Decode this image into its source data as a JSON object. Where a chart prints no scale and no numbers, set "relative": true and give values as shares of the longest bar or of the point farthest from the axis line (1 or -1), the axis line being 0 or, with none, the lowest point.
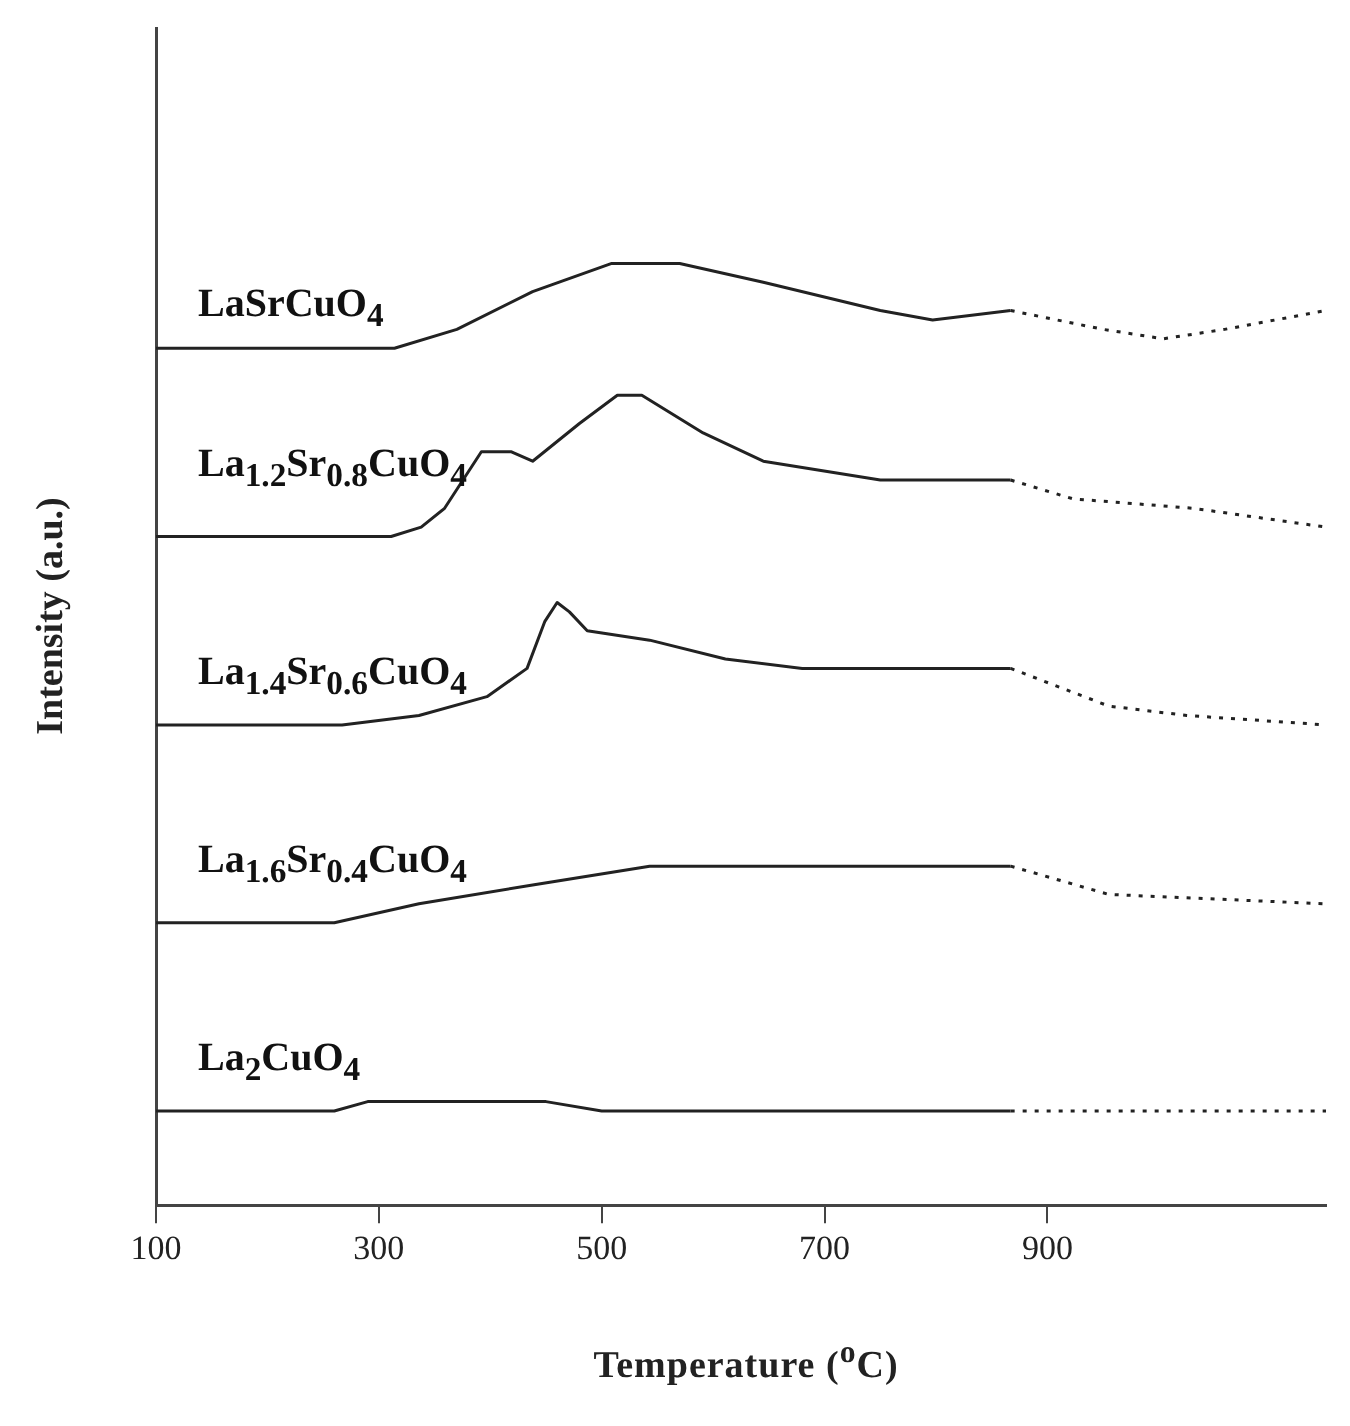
{
  "chart_data": {
    "type": "line",
    "xlabel": "Temperature ($^{o}$C)",
    "ylabel": "Intensity (a.u.)",
    "xlim": [
      100,
      1150
    ],
    "xticks": [
      100,
      300,
      500,
      700,
      900
    ],
    "relative": true,
    "tick_labels": "x",
    "legend": false,
    "grid": false,
    "marker": "none",
    "series": [
      {
        "name": "LaSrCuO$_{4}$",
        "color": "#222222",
        "line_style": "solid",
        "x": [
          100,
          314,
          370,
          438,
          509,
          570,
          645,
          750,
          797,
          867
        ],
        "values": [
          0.91,
          0.91,
          0.93,
          0.97,
          1.0,
          1.0,
          0.98,
          0.95,
          0.94,
          0.95
        ]
      },
      {
        "color": "#222222",
        "line_style": "dotted",
        "x": [
          867,
          950,
          1004,
          1059,
          1150
        ],
        "values": [
          0.95,
          0.93,
          0.92,
          0.93,
          0.95
        ]
      },
      {
        "name": "La$_{1.2}$Sr$_{0.8}$CuO$_{4}$",
        "color": "#222222",
        "line_style": "solid",
        "x": [
          100,
          311,
          338,
          359,
          392,
          419,
          438,
          480,
          514,
          536,
          591,
          645,
          750,
          867
        ],
        "values": [
          0.71,
          0.71,
          0.72,
          0.74,
          0.8,
          0.8,
          0.79,
          0.83,
          0.86,
          0.86,
          0.82,
          0.79,
          0.77,
          0.77
        ]
      },
      {
        "color": "#222222",
        "line_style": "dotted",
        "x": [
          867,
          923,
          1031,
          1150
        ],
        "values": [
          0.77,
          0.75,
          0.74,
          0.72
        ]
      },
      {
        "name": "La$_{1.4}$Sr$_{0.6}$CuO$_{4}$",
        "color": "#222222",
        "line_style": "solid",
        "x": [
          100,
          267,
          336,
          397,
          433,
          449,
          460,
          471,
          487,
          543,
          611,
          680,
          825,
          867
        ],
        "values": [
          0.51,
          0.51,
          0.52,
          0.54,
          0.57,
          0.62,
          0.64,
          0.63,
          0.61,
          0.6,
          0.58,
          0.57,
          0.57,
          0.57
        ]
      },
      {
        "color": "#222222",
        "line_style": "dotted",
        "x": [
          867,
          955,
          1025,
          1150
        ],
        "values": [
          0.57,
          0.53,
          0.52,
          0.51
        ]
      },
      {
        "name": "La$_{1.6}$Sr$_{0.4}$CuO$_{4}$",
        "color": "#222222",
        "line_style": "solid",
        "x": [
          100,
          260,
          336,
          438,
          543,
          645,
          867
        ],
        "values": [
          0.3,
          0.3,
          0.32,
          0.34,
          0.36,
          0.36,
          0.36
        ]
      },
      {
        "color": "#222222",
        "line_style": "dotted",
        "x": [
          867,
          955,
          1150
        ],
        "values": [
          0.36,
          0.33,
          0.32
        ]
      },
      {
        "name": "La$_{2}$CuO$_{4}$",
        "color": "#222222",
        "line_style": "solid",
        "x": [
          100,
          260,
          290,
          450,
          500,
          850,
          867
        ],
        "values": [
          0.1,
          0.1,
          0.11,
          0.11,
          0.1,
          0.1,
          0.1
        ]
      },
      {
        "color": "#222222",
        "line_style": "dotted",
        "x": [
          867,
          1150
        ],
        "values": [
          0.1,
          0.1
        ]
      }
    ]
  }
}
